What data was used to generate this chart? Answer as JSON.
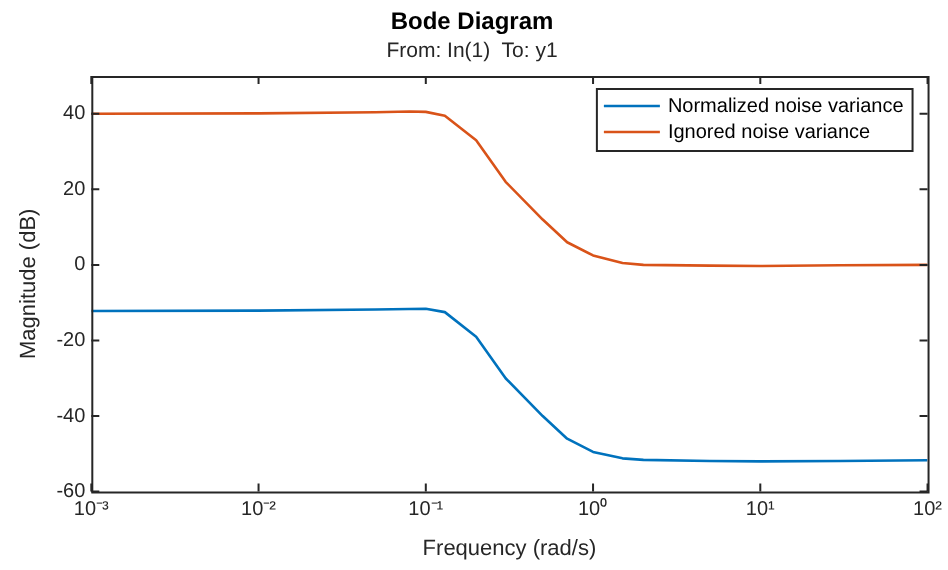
{
  "chart_data": {
    "type": "line",
    "title": "Bode Diagram",
    "subtitle": "From: In(1)  To: y1",
    "xlabel": "Frequency (rad/s)",
    "ylabel": "Magnitude (dB)",
    "log": "x",
    "xlim": [
      0.001,
      100
    ],
    "xticks": [
      {
        "value": 0.001,
        "label": "10⁻³"
      },
      {
        "value": 0.01,
        "label": "10⁻²"
      },
      {
        "value": 0.1,
        "label": "10⁻¹"
      },
      {
        "value": 1,
        "label": "10⁰"
      },
      {
        "value": 10,
        "label": "10¹"
      },
      {
        "value": 100,
        "label": "10²"
      }
    ],
    "ylim": [
      -60,
      50
    ],
    "yticks": [
      -60,
      -40,
      -20,
      0,
      20,
      40
    ],
    "grid": false,
    "legend": "top right",
    "marker": "none",
    "line_style": "solid",
    "series": [
      {
        "name": "Normalized noise variance",
        "color": "#0072bd",
        "x": [
          0.001,
          0.01,
          0.05,
          0.1,
          0.13,
          0.2,
          0.3,
          0.5,
          0.7,
          1,
          1.5,
          2,
          5,
          10,
          30,
          100
        ],
        "values": [
          -12.2,
          -12.1,
          -11.8,
          -11.6,
          -12.5,
          -19,
          -30,
          -40,
          -46,
          -49.5,
          -51.2,
          -51.6,
          -51.9,
          -52,
          -51.9,
          -51.7
        ]
      },
      {
        "name": "Ignored noise variance",
        "color": "#d95319",
        "x": [
          0.001,
          0.01,
          0.05,
          0.08,
          0.1,
          0.13,
          0.2,
          0.3,
          0.5,
          0.7,
          1,
          1.5,
          2,
          5,
          10,
          30,
          100
        ],
        "values": [
          40,
          40.1,
          40.4,
          40.6,
          40.5,
          39.5,
          33,
          22,
          12,
          6,
          2.5,
          0.5,
          0,
          -0.2,
          -0.3,
          -0.1,
          0
        ]
      }
    ]
  }
}
